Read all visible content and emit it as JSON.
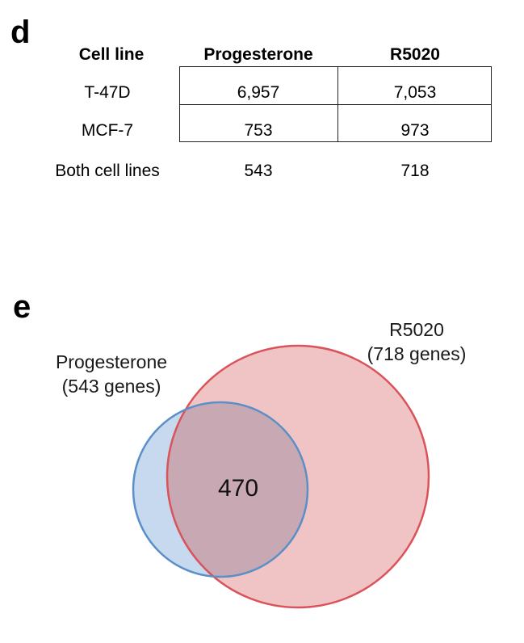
{
  "panel_d": {
    "label": "d",
    "headers": [
      "Cell line",
      "Progesterone",
      "R5020"
    ],
    "rows": [
      {
        "cell_line": "T-47D",
        "progesterone": "6,957",
        "r5020": "7,053"
      },
      {
        "cell_line": "MCF-7",
        "progesterone": "753",
        "r5020": "973"
      },
      {
        "cell_line": "Both cell lines",
        "progesterone": "543",
        "r5020": "718"
      }
    ]
  },
  "panel_e": {
    "label": "e",
    "sets": [
      {
        "name": "Progesterone",
        "count_text": "(543 genes)",
        "genes": 543,
        "color": "#c7d9ee",
        "stroke": "#5b8fc7"
      },
      {
        "name": "R5020",
        "count_text": "(718 genes)",
        "genes": 718,
        "color": "#f0c4c4",
        "stroke": "#d9535a"
      }
    ],
    "overlap": "470",
    "overlap_color": "#c8a9b3"
  }
}
